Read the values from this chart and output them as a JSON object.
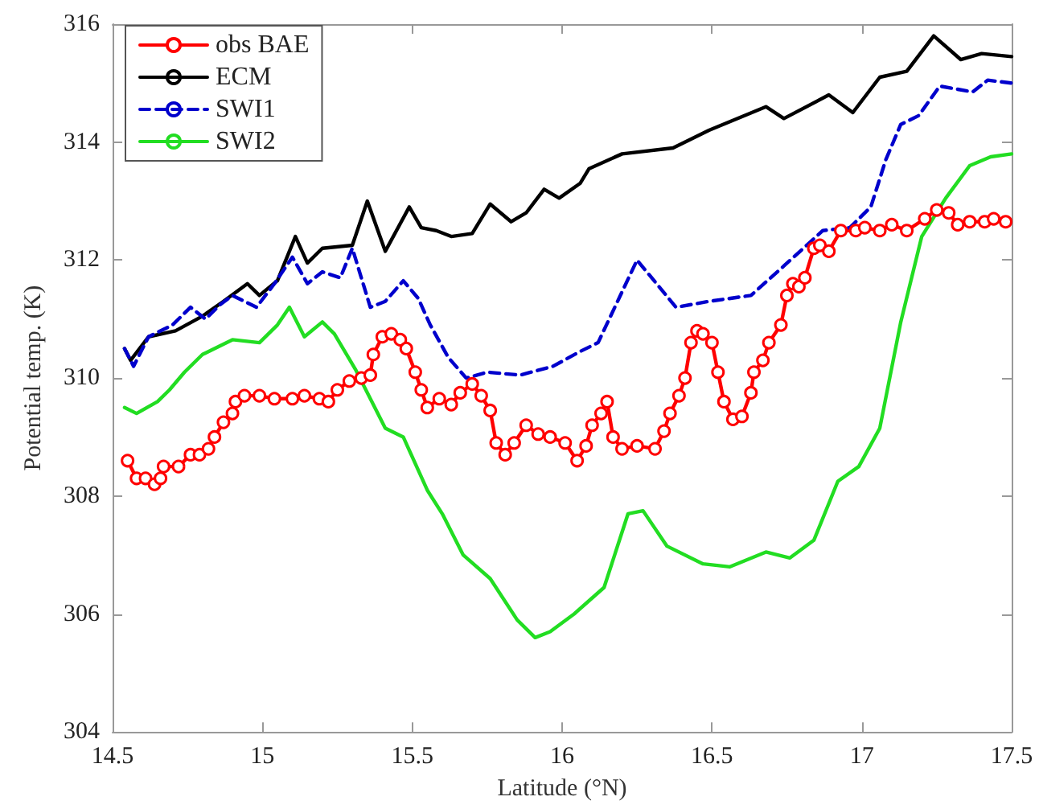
{
  "chart_data": {
    "type": "line",
    "xlabel": "Latitude (°N)",
    "ylabel": "Potential temp. (K)",
    "xlim": [
      14.5,
      17.5
    ],
    "xticks": [
      14.5,
      15,
      15.5,
      16,
      16.5,
      17,
      17.5
    ],
    "ylim": [
      304,
      316
    ],
    "yticks": [
      304,
      306,
      308,
      310,
      312,
      314,
      316
    ],
    "grid": false,
    "legend": "top left",
    "series": [
      {
        "name": "obs BAE",
        "color": "#ff0000",
        "marker": "circle",
        "line_style": "solid",
        "x": [
          14.55,
          14.58,
          14.61,
          14.64,
          14.66,
          14.67,
          14.72,
          14.76,
          14.79,
          14.82,
          14.84,
          14.87,
          14.9,
          14.91,
          14.94,
          14.99,
          15.04,
          15.1,
          15.14,
          15.19,
          15.22,
          15.25,
          15.29,
          15.33,
          15.36,
          15.37,
          15.4,
          15.43,
          15.46,
          15.48,
          15.51,
          15.53,
          15.55,
          15.59,
          15.63,
          15.66,
          15.7,
          15.73,
          15.76,
          15.78,
          15.81,
          15.84,
          15.88,
          15.92,
          15.96,
          16.01,
          16.05,
          16.08,
          16.1,
          16.13,
          16.15,
          16.17,
          16.2,
          16.25,
          16.31,
          16.34,
          16.36,
          16.39,
          16.41,
          16.43,
          16.45,
          16.47,
          16.5,
          16.52,
          16.54,
          16.57,
          16.6,
          16.63,
          16.64,
          16.67,
          16.69,
          16.73,
          16.75,
          16.77,
          16.79,
          16.81,
          16.84,
          16.86,
          16.89,
          16.93,
          16.98,
          17.01,
          17.06,
          17.1,
          17.15,
          17.21,
          17.25,
          17.29,
          17.32,
          17.36,
          17.41,
          17.44,
          17.48
        ],
        "values": [
          308.6,
          308.3,
          308.3,
          308.2,
          308.3,
          308.5,
          308.5,
          308.7,
          308.7,
          308.8,
          309.0,
          309.25,
          309.4,
          309.6,
          309.7,
          309.7,
          309.65,
          309.65,
          309.7,
          309.65,
          309.6,
          309.8,
          309.95,
          310.0,
          310.05,
          310.4,
          310.7,
          310.75,
          310.65,
          310.5,
          310.1,
          309.8,
          309.5,
          309.65,
          309.55,
          309.75,
          309.9,
          309.7,
          309.45,
          308.9,
          308.7,
          308.9,
          309.2,
          309.05,
          309.0,
          308.9,
          308.6,
          308.85,
          309.2,
          309.4,
          309.6,
          309.0,
          308.8,
          308.85,
          308.8,
          309.1,
          309.4,
          309.7,
          310.0,
          310.6,
          310.8,
          310.75,
          310.6,
          310.1,
          309.6,
          309.3,
          309.35,
          309.75,
          310.1,
          310.3,
          310.6,
          310.9,
          311.4,
          311.6,
          311.55,
          311.7,
          312.2,
          312.25,
          312.15,
          312.5,
          312.5,
          312.55,
          312.5,
          312.6,
          312.5,
          312.7,
          312.85,
          312.8,
          312.6,
          312.65,
          312.65,
          312.7,
          312.65
        ]
      },
      {
        "name": "ECM",
        "color": "#000000",
        "marker": "none",
        "line_style": "solid",
        "x": [
          14.54,
          14.56,
          14.62,
          14.71,
          14.8,
          14.87,
          14.95,
          14.99,
          15.05,
          15.11,
          15.15,
          15.2,
          15.3,
          15.35,
          15.41,
          15.49,
          15.53,
          15.58,
          15.63,
          15.7,
          15.76,
          15.83,
          15.88,
          15.94,
          15.99,
          16.06,
          16.09,
          16.2,
          16.37,
          16.49,
          16.68,
          16.74,
          16.89,
          16.97,
          17.06,
          17.15,
          17.24,
          17.33,
          17.4,
          17.5
        ],
        "values": [
          310.5,
          310.3,
          310.7,
          310.8,
          311.05,
          311.3,
          311.6,
          311.4,
          311.65,
          312.4,
          311.95,
          312.2,
          312.25,
          313.0,
          312.15,
          312.9,
          312.55,
          312.5,
          312.4,
          312.45,
          312.95,
          312.65,
          312.8,
          313.2,
          313.05,
          313.3,
          313.55,
          313.8,
          313.9,
          314.2,
          314.6,
          314.4,
          314.8,
          314.5,
          315.1,
          315.2,
          315.8,
          315.4,
          315.5,
          315.45
        ]
      },
      {
        "name": "SWI1",
        "color": "#0000cc",
        "marker": "none",
        "line_style": "dashed",
        "x": [
          14.54,
          14.57,
          14.62,
          14.7,
          14.76,
          14.81,
          14.86,
          14.9,
          14.98,
          15.04,
          15.1,
          15.15,
          15.2,
          15.26,
          15.3,
          15.36,
          15.41,
          15.47,
          15.52,
          15.56,
          15.62,
          15.68,
          15.75,
          15.86,
          15.97,
          16.06,
          16.12,
          16.25,
          16.38,
          16.49,
          16.63,
          16.74,
          16.87,
          16.96,
          17.03,
          17.08,
          17.13,
          17.19,
          17.26,
          17.37,
          17.42,
          17.5
        ],
        "values": [
          310.5,
          310.2,
          310.7,
          310.9,
          311.2,
          311.0,
          311.25,
          311.4,
          311.2,
          311.6,
          312.05,
          311.6,
          311.8,
          311.7,
          312.2,
          311.2,
          311.3,
          311.65,
          311.35,
          310.9,
          310.35,
          310.0,
          310.1,
          310.05,
          310.2,
          310.45,
          310.6,
          312.0,
          311.2,
          311.3,
          311.4,
          311.9,
          312.5,
          312.55,
          312.9,
          313.7,
          314.3,
          314.45,
          314.95,
          314.85,
          315.05,
          315.0
        ]
      },
      {
        "name": "SWI2",
        "color": "#22dd22",
        "marker": "none",
        "line_style": "solid",
        "x": [
          14.54,
          14.58,
          14.65,
          14.69,
          14.74,
          14.8,
          14.9,
          14.99,
          15.05,
          15.09,
          15.14,
          15.2,
          15.24,
          15.31,
          15.41,
          15.47,
          15.55,
          15.6,
          15.67,
          15.76,
          15.85,
          15.91,
          15.96,
          16.04,
          16.14,
          16.22,
          16.27,
          16.35,
          16.47,
          16.56,
          16.68,
          16.76,
          16.84,
          16.92,
          16.99,
          17.06,
          17.13,
          17.2,
          17.28,
          17.36,
          17.43,
          17.5
        ],
        "values": [
          309.5,
          309.4,
          309.6,
          309.8,
          310.1,
          310.4,
          310.65,
          310.6,
          310.9,
          311.2,
          310.7,
          310.95,
          310.75,
          310.15,
          309.15,
          309.0,
          308.1,
          307.7,
          307.0,
          306.6,
          305.9,
          305.6,
          305.7,
          306.0,
          306.45,
          307.7,
          307.75,
          307.15,
          306.85,
          306.8,
          307.05,
          306.95,
          307.25,
          308.25,
          308.5,
          309.15,
          310.95,
          312.4,
          313.05,
          313.6,
          313.75,
          313.8
        ]
      }
    ]
  }
}
